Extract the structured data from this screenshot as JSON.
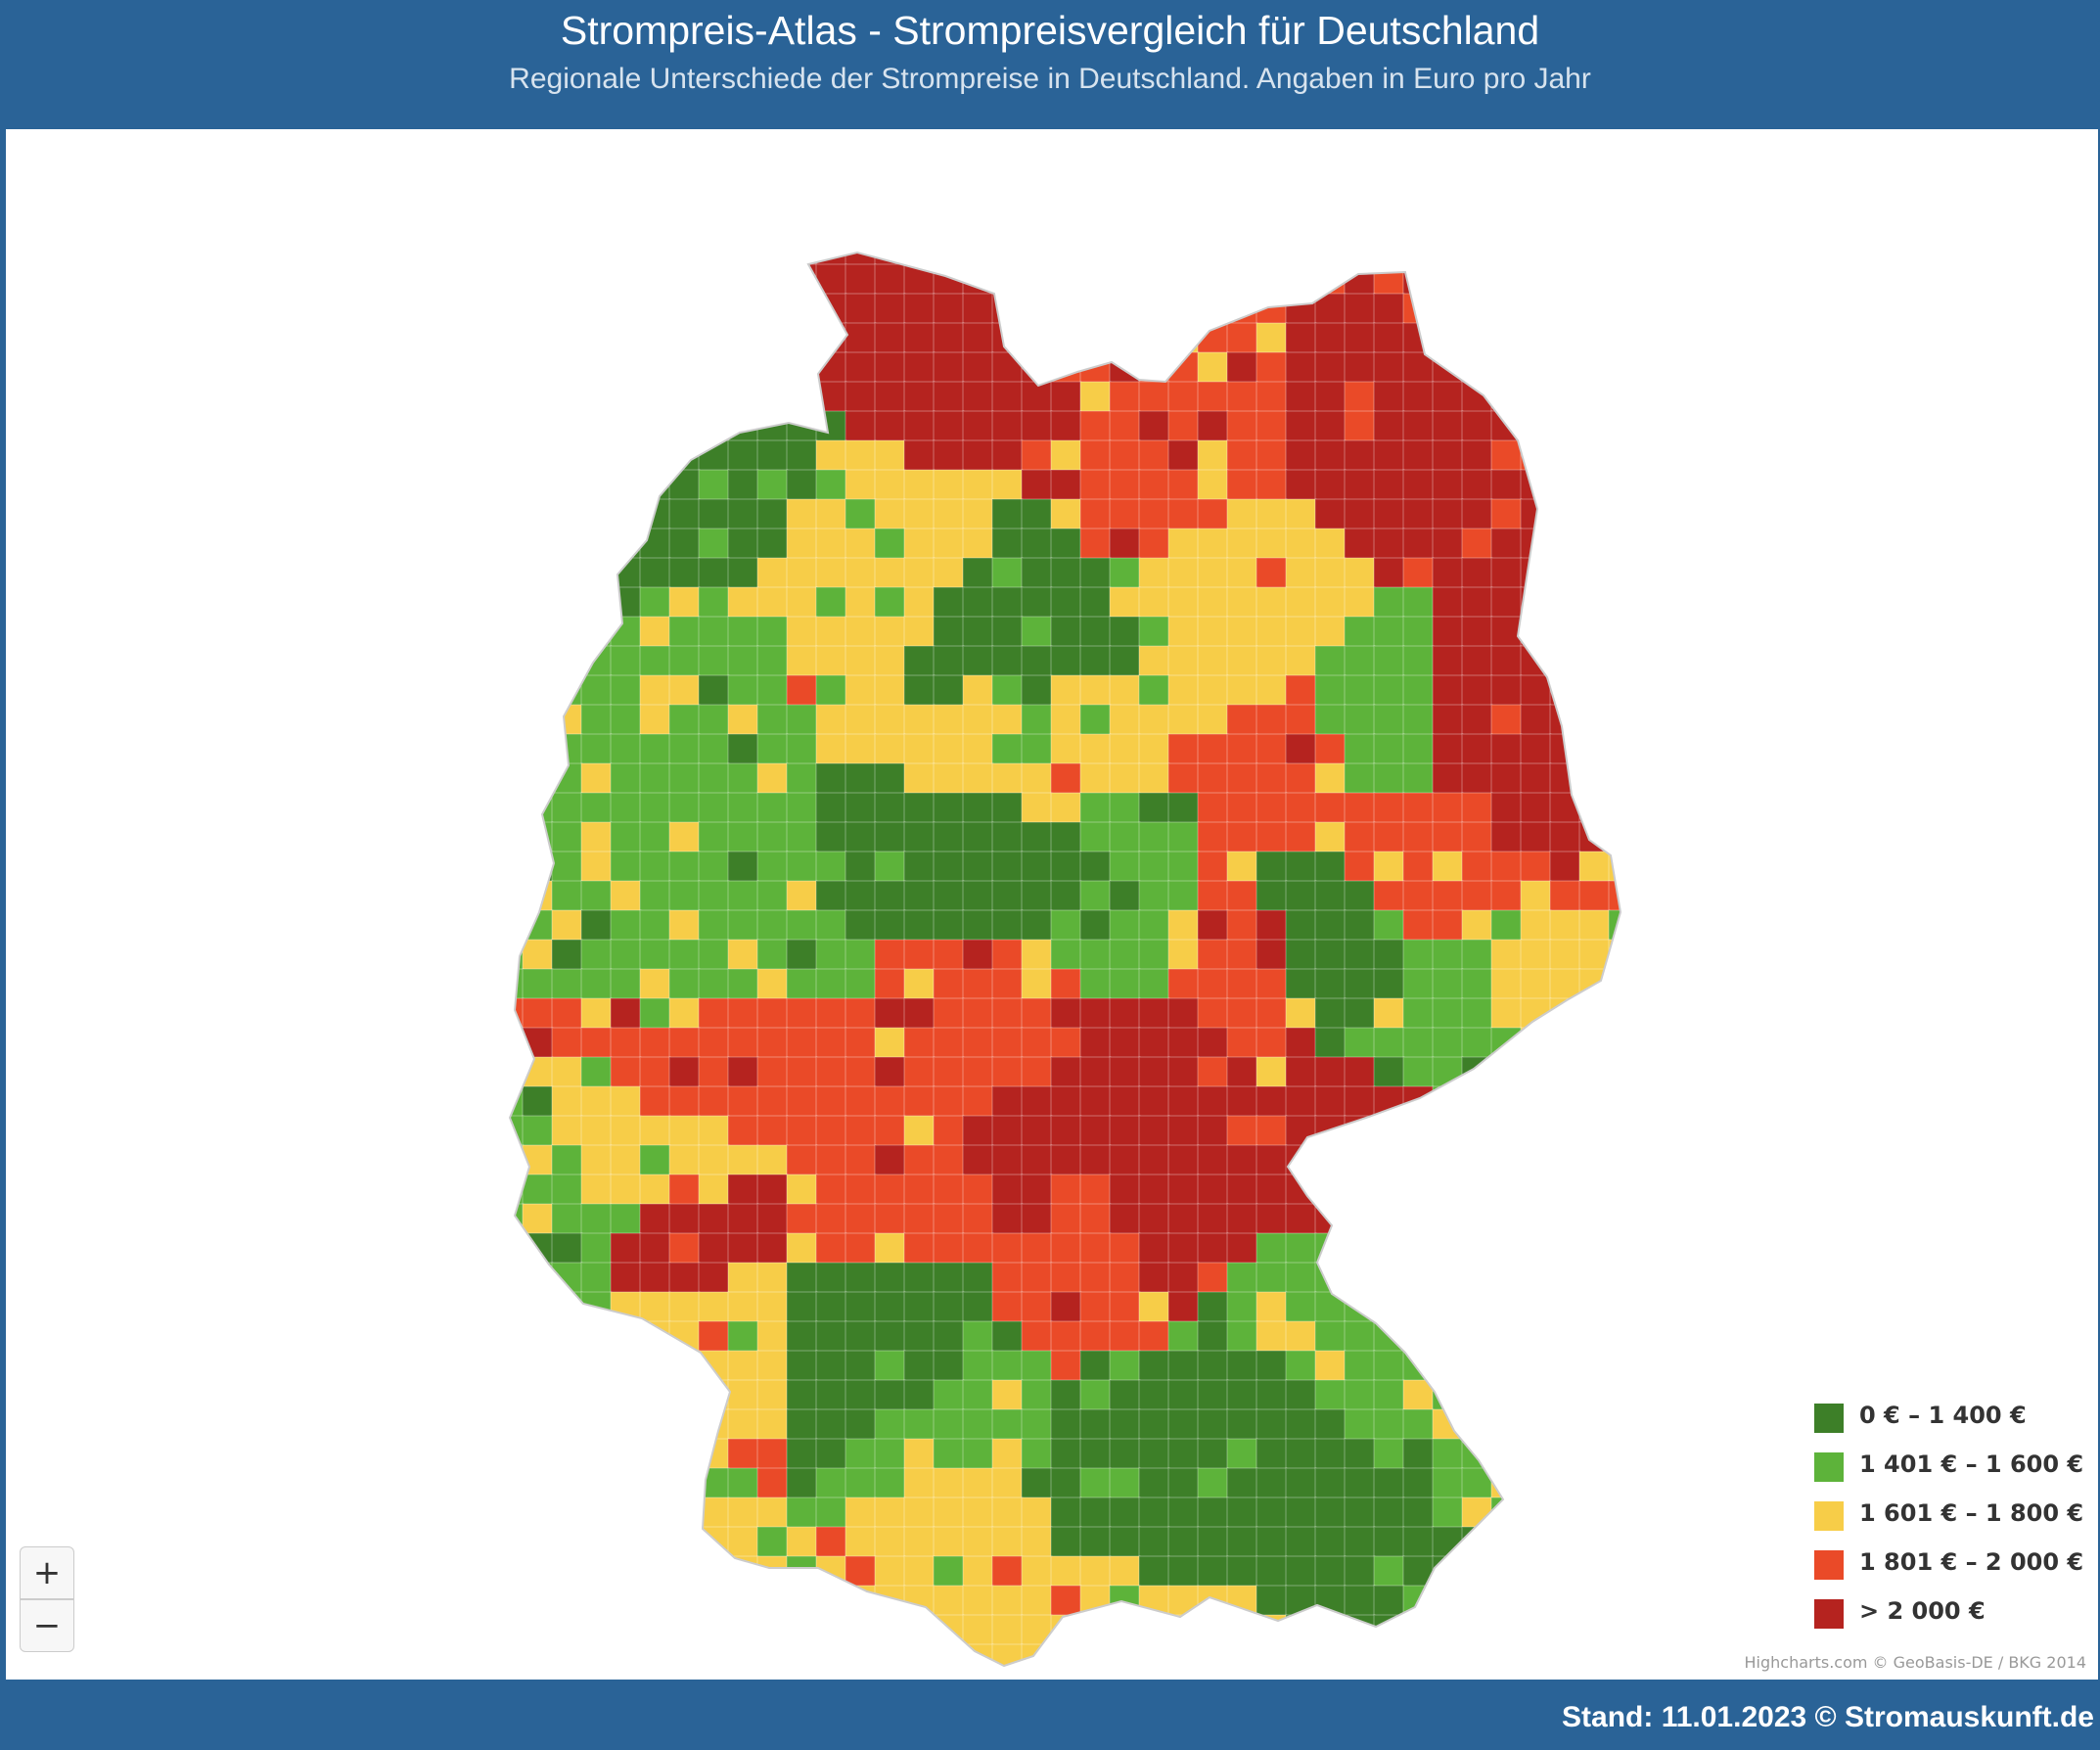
{
  "header": {
    "title": "Strompreis-Atlas - Strompreisvergleich für Deutschland",
    "subtitle": "Regionale Unterschiede der Strompreise in Deutschland. Angaben in Euro pro Jahr"
  },
  "map": {
    "zoom_in_label": "+",
    "zoom_out_label": "−",
    "credits": "Highcharts.com © GeoBasis-DE / BKG 2014",
    "legend": [
      {
        "label": "0 € – 1 400 €",
        "color": "#3d7f28"
      },
      {
        "label": "1 401 € – 1 600 €",
        "color": "#5db33a"
      },
      {
        "label": "1 601 € – 1 800 €",
        "color": "#f7cd48"
      },
      {
        "label": "1 801 € – 2 000 €",
        "color": "#ea4a28"
      },
      {
        "label": "> 2 000 €",
        "color": "#b5231f"
      }
    ]
  },
  "footer": {
    "text": "Stand: 11.01.2023 © Stromauskunft.de"
  }
}
